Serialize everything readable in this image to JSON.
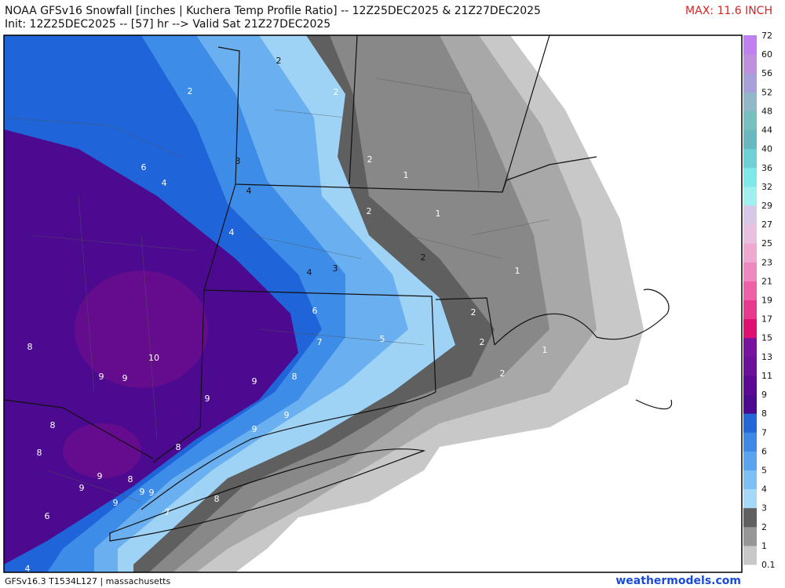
{
  "header": {
    "title": "NOAA GFSv16 Snowfall [inches | Kuchera Temp Profile Ratio] -- 12Z25DEC2025 & 21Z27DEC2025",
    "subtitle": "Init: 12Z25DEC2025 -- [57] hr --> Valid Sat 21Z27DEC2025",
    "max": "MAX: 11.6 INCH"
  },
  "colorbar": {
    "labels": [
      "0.1",
      "1",
      "2",
      "3",
      "4",
      "5",
      "6",
      "7",
      "8",
      "9",
      "11",
      "13",
      "15",
      "17",
      "19",
      "21",
      "23",
      "25",
      "27",
      "29",
      "32",
      "36",
      "40",
      "44",
      "48",
      "52",
      "56",
      "60",
      "72"
    ],
    "colors": [
      "#c8c8c8",
      "#969696",
      "#606060",
      "#a6d8f8",
      "#7cc0f5",
      "#5aa4ef",
      "#3e88e6",
      "#2468d8",
      "#4b0a8f",
      "#5c0a96",
      "#6a1099",
      "#7a12a0",
      "#e01070",
      "#e83890",
      "#f060a8",
      "#f088c0",
      "#f0a8d0",
      "#e8c0e0",
      "#d8c8e8",
      "#a0f0f0",
      "#80e8e8",
      "#70d0d8",
      "#68b8c0",
      "#78c0c0",
      "#90b8c8",
      "#a8a0d8",
      "#c090e0",
      "#c080f0"
    ]
  },
  "map_labels": [
    "2",
    "2",
    "2",
    "6",
    "4",
    "3",
    "4",
    "2",
    "1",
    "2",
    "1",
    "4",
    "2",
    "4",
    "3",
    "1",
    "6",
    "2",
    "7",
    "5",
    "2",
    "8",
    "10",
    "1",
    "9",
    "9",
    "9",
    "8",
    "2",
    "9",
    "9",
    "8",
    "9",
    "8",
    "8",
    "9",
    "8",
    "9",
    "9",
    "9",
    "9",
    "8",
    "7",
    "6",
    "4"
  ],
  "footer": {
    "left": "GFSv16.3 T1534L127 | massachusetts",
    "right": "weathermodels.com"
  }
}
